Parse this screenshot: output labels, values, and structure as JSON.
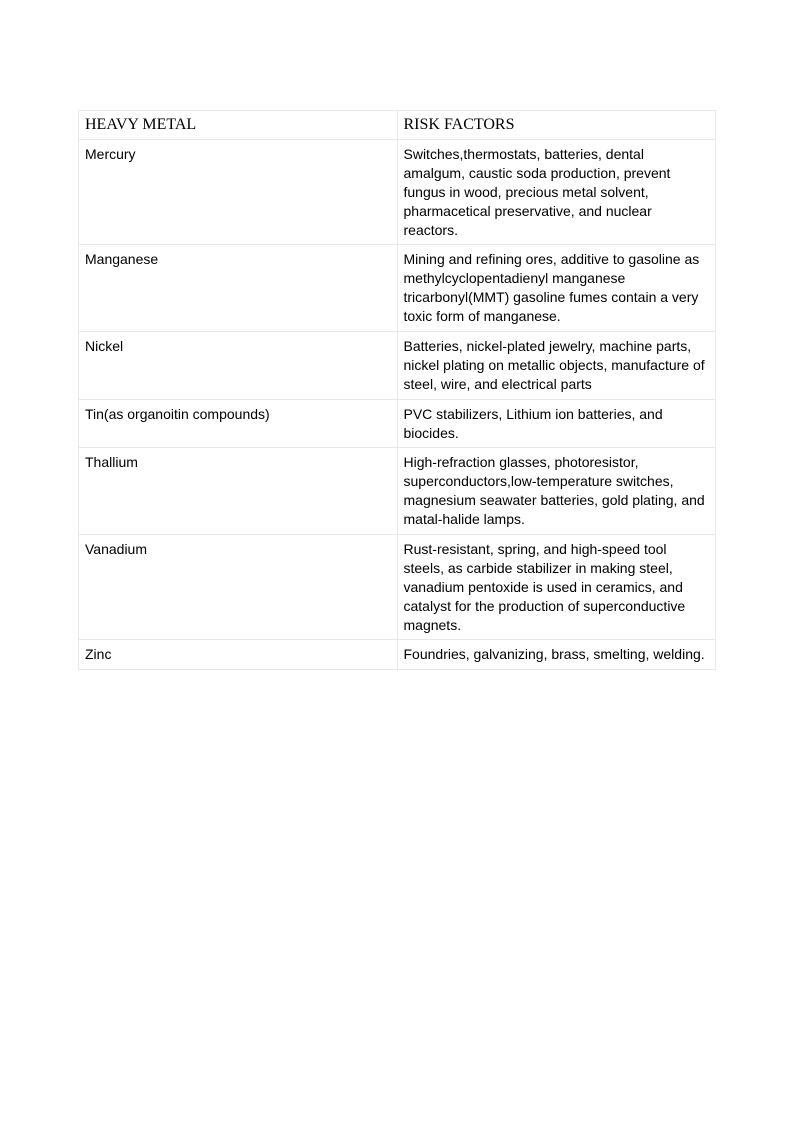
{
  "table": {
    "columns": [
      "HEAVY METAL",
      "RISK FACTORS"
    ],
    "rows": [
      [
        "Mercury",
        "Switches,thermostats, batteries, dental amalgum, caustic soda production, prevent fungus in wood, precious metal solvent, pharmacetical preservative, and nuclear reactors."
      ],
      [
        "Manganese",
        "Mining and refining ores, additive to gasoline as methylcyclopentadienyl manganese tricarbonyl(MMT) gasoline fumes contain a very toxic form of manganese."
      ],
      [
        "Nickel",
        "Batteries, nickel-plated jewelry, machine parts, nickel plating on metallic objects, manufacture of steel, wire, and electrical parts"
      ],
      [
        "Tin(as organoitin compounds)",
        "PVC stabilizers, Lithium ion batteries, and biocides."
      ],
      [
        "Thallium",
        "High-refraction glasses, photoresistor, superconductors,low-temperature switches, magnesium seawater batteries, gold plating, and matal-halide lamps."
      ],
      [
        "Vanadium",
        "Rust-resistant, spring, and high-speed tool steels, as carbide stabilizer in making steel, vanadium pentoxide is used in ceramics, and catalyst for the production of superconductive magnets."
      ],
      [
        "Zinc",
        "Foundries, galvanizing, brass, smelting, welding."
      ]
    ],
    "header_font_family": "Times New Roman",
    "body_font_family": "Lucida Sans",
    "border_color": "#e8e8e8",
    "background_color": "#ffffff",
    "text_color": "#000000",
    "header_fontsize": 16,
    "body_fontsize": 14,
    "column_widths": [
      "50%",
      "50%"
    ]
  }
}
